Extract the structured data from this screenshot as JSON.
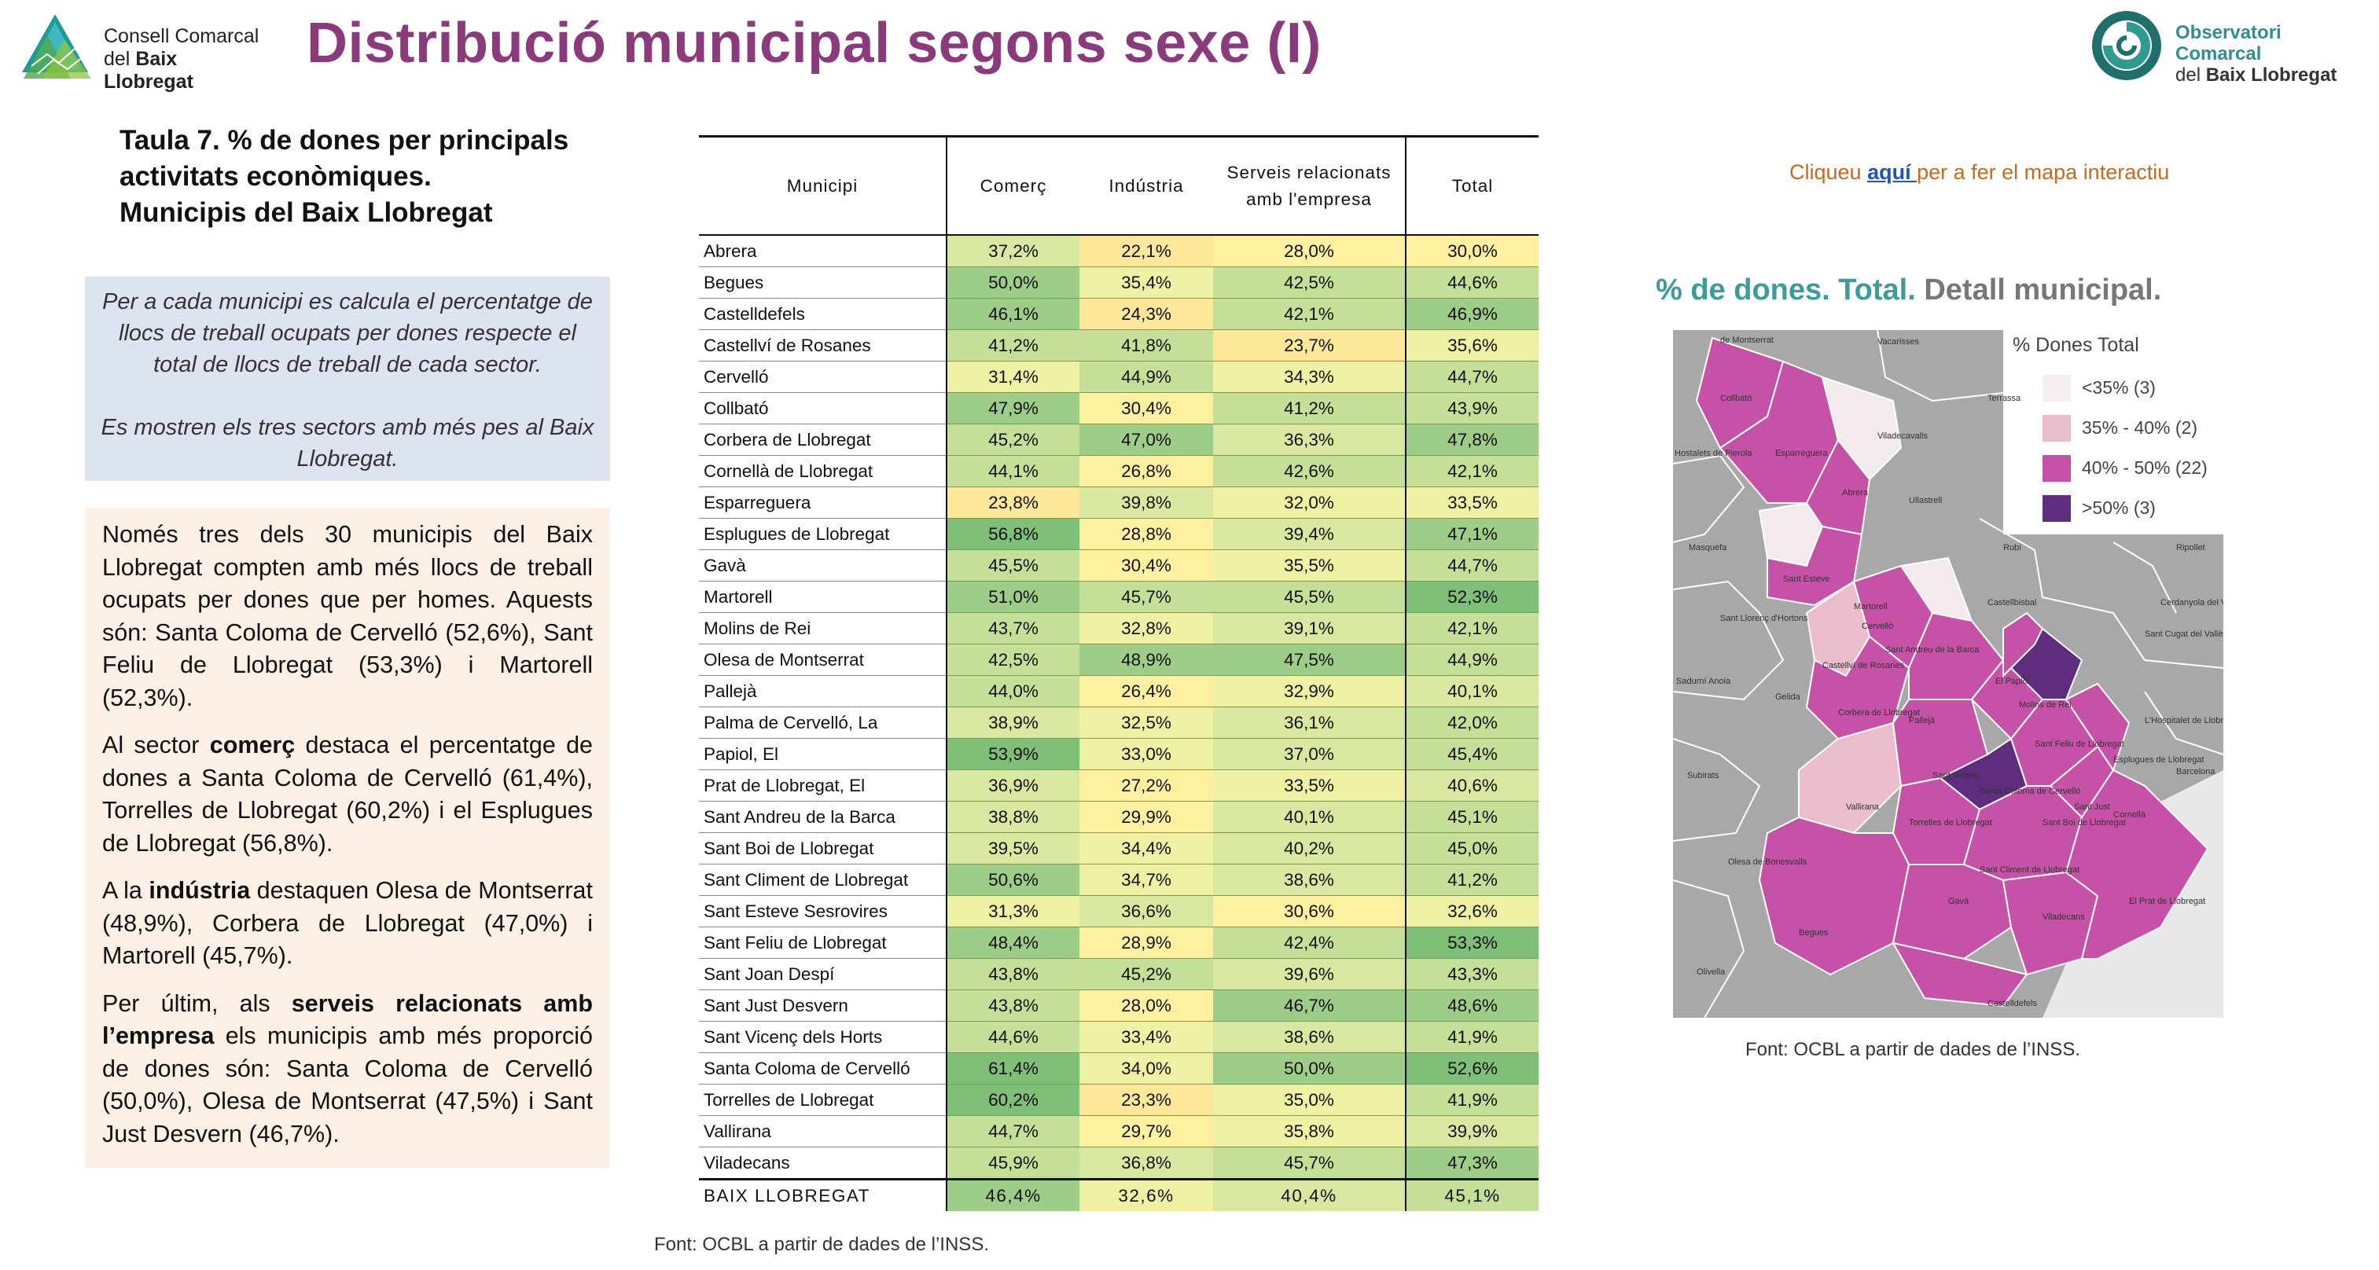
{
  "header": {
    "org_left_line1": "Consell Comarcal",
    "org_left_line2_prefix": "del ",
    "org_left_line2_bold": "Baix Llobregat",
    "title": "Distribució municipal segons sexe (I)",
    "org_right_line1": "Observatori Comarcal",
    "org_right_line2_prefix": "del ",
    "org_right_line2_bold": "Baix Llobregat"
  },
  "left": {
    "table_title_l1": "Taula 7. % de dones per principals",
    "table_title_l2": "activitats econòmiques.",
    "table_title_l3": "Municipis del Baix Llobregat",
    "note_p1": "Per a cada municipi es calcula el percentatge de llocs de treball ocupats per dones respecte el total de llocs de treball de cada sector.",
    "note_p2": "Es mostren els tres sectors amb més pes al Baix Llobregat.",
    "body_p1": "Només tres dels 30 municipis del Baix Llobregat compten amb més llocs de treball ocupats per dones que per homes. Aquests són: Santa Coloma de Cervelló (52,6%), Sant Feliu de Llobregat (53,3%) i Martorell (52,3%).",
    "body_p2_a": "Al sector ",
    "body_p2_b": "comerç",
    "body_p2_c": " destaca el percentatge de dones a Santa Coloma de Cervelló (61,4%), Torrelles de Llobregat (60,2%) i el Esplugues de Llobregat (56,8%).",
    "body_p3_a": "A la ",
    "body_p3_b": "indústria",
    "body_p3_c": " destaquen Olesa de Montserrat (48,9%), Corbera de Llobregat (47,0%) i Martorell (45,7%).",
    "body_p4_a": "Per últim, als ",
    "body_p4_b": "serveis relacionats amb l’empresa",
    "body_p4_c": " els municipis amb més proporció de dones són: Santa Coloma de Cervelló (50,0%), Olesa de Montserrat (47,5%) i Sant Just Desvern (46,7%)."
  },
  "table": {
    "headers": [
      "Municipi",
      "Comerç",
      "Indústria",
      "Serveis relacionats amb l'empresa",
      "Total"
    ],
    "rows": [
      {
        "m": "Abrera",
        "v": [
          "37,2%",
          "22,1%",
          "28,0%",
          "30,0%"
        ]
      },
      {
        "m": "Begues",
        "v": [
          "50,0%",
          "35,4%",
          "42,5%",
          "44,6%"
        ]
      },
      {
        "m": "Castelldefels",
        "v": [
          "46,1%",
          "24,3%",
          "42,1%",
          "46,9%"
        ]
      },
      {
        "m": "Castellví de Rosanes",
        "v": [
          "41,2%",
          "41,8%",
          "23,7%",
          "35,6%"
        ]
      },
      {
        "m": "Cervelló",
        "v": [
          "31,4%",
          "44,9%",
          "34,3%",
          "44,7%"
        ]
      },
      {
        "m": "Collbató",
        "v": [
          "47,9%",
          "30,4%",
          "41,2%",
          "43,9%"
        ]
      },
      {
        "m": "Corbera de Llobregat",
        "v": [
          "45,2%",
          "47,0%",
          "36,3%",
          "47,8%"
        ]
      },
      {
        "m": "Cornellà de Llobregat",
        "v": [
          "44,1%",
          "26,8%",
          "42,6%",
          "42,1%"
        ]
      },
      {
        "m": "Esparreguera",
        "v": [
          "23,8%",
          "39,8%",
          "32,0%",
          "33,5%"
        ]
      },
      {
        "m": "Esplugues de Llobregat",
        "v": [
          "56,8%",
          "28,8%",
          "39,4%",
          "47,1%"
        ]
      },
      {
        "m": "Gavà",
        "v": [
          "45,5%",
          "30,4%",
          "35,5%",
          "44,7%"
        ]
      },
      {
        "m": "Martorell",
        "v": [
          "51,0%",
          "45,7%",
          "45,5%",
          "52,3%"
        ]
      },
      {
        "m": "Molins de Rei",
        "v": [
          "43,7%",
          "32,8%",
          "39,1%",
          "42,1%"
        ]
      },
      {
        "m": "Olesa de Montserrat",
        "v": [
          "42,5%",
          "48,9%",
          "47,5%",
          "44,9%"
        ]
      },
      {
        "m": "Pallejà",
        "v": [
          "44,0%",
          "26,4%",
          "32,9%",
          "40,1%"
        ]
      },
      {
        "m": "Palma de Cervelló, La",
        "v": [
          "38,9%",
          "32,5%",
          "36,1%",
          "42,0%"
        ]
      },
      {
        "m": "Papiol, El",
        "v": [
          "53,9%",
          "33,0%",
          "37,0%",
          "45,4%"
        ]
      },
      {
        "m": "Prat de Llobregat, El",
        "v": [
          "36,9%",
          "27,2%",
          "33,5%",
          "40,6%"
        ]
      },
      {
        "m": "Sant Andreu de la Barca",
        "v": [
          "38,8%",
          "29,9%",
          "40,1%",
          "45,1%"
        ]
      },
      {
        "m": "Sant Boi de Llobregat",
        "v": [
          "39,5%",
          "34,4%",
          "40,2%",
          "45,0%"
        ]
      },
      {
        "m": "Sant Climent de Llobregat",
        "v": [
          "50,6%",
          "34,7%",
          "38,6%",
          "41,2%"
        ]
      },
      {
        "m": "Sant Esteve Sesrovires",
        "v": [
          "31,3%",
          "36,6%",
          "30,6%",
          "32,6%"
        ]
      },
      {
        "m": "Sant Feliu de Llobregat",
        "v": [
          "48,4%",
          "28,9%",
          "42,4%",
          "53,3%"
        ]
      },
      {
        "m": "Sant Joan Despí",
        "v": [
          "43,8%",
          "45,2%",
          "39,6%",
          "43,3%"
        ]
      },
      {
        "m": "Sant Just Desvern",
        "v": [
          "43,8%",
          "28,0%",
          "46,7%",
          "48,6%"
        ]
      },
      {
        "m": "Sant Vicenç dels Horts",
        "v": [
          "44,6%",
          "33,4%",
          "38,6%",
          "41,9%"
        ]
      },
      {
        "m": "Santa Coloma de Cervelló",
        "v": [
          "61,4%",
          "34,0%",
          "50,0%",
          "52,6%"
        ]
      },
      {
        "m": "Torrelles de Llobregat",
        "v": [
          "60,2%",
          "23,3%",
          "35,0%",
          "41,9%"
        ]
      },
      {
        "m": "Vallirana",
        "v": [
          "44,7%",
          "29,7%",
          "35,8%",
          "39,9%"
        ]
      },
      {
        "m": "Viladecans",
        "v": [
          "45,9%",
          "36,8%",
          "45,7%",
          "47,3%"
        ]
      }
    ],
    "total": {
      "m": "BAIX LLOBREGAT",
      "v": [
        "46,4%",
        "32,6%",
        "40,4%",
        "45,1%"
      ]
    },
    "source": "Font: OCBL a partir de dades de l’INSS."
  },
  "right": {
    "click_pre": "Cliqueu ",
    "click_link": "aquí ",
    "click_post": "per a fer el mapa interactiu",
    "map_title_a": "% de dones. Total.",
    "map_title_b": " Detall municipal.",
    "legend_title": "% Dones Total",
    "legend": [
      {
        "label": "<35% (3)",
        "color": "#f6eef1"
      },
      {
        "label": "35% - 40% (2)",
        "color": "#ebbccb"
      },
      {
        "label": "40% - 50% (22)",
        "color": "#c552a6"
      },
      {
        "label": ">50% (3)",
        "color": "#5f2d7e"
      }
    ],
    "map_labels": [
      "de Montserrat",
      "Vacarisses",
      "Terrassa",
      "Viladecavalls",
      "Hostalets de Pierola",
      "Masquefa",
      "Rubí",
      "Ripollet",
      "Ullastrell",
      "Castellbisbal",
      "Cerdanyola del Vallès",
      "Sant Llorenç d'Hortons",
      "Sant Cugat del Vallès",
      "Sadurní Anoia",
      "Gelida",
      "Subirats",
      "Barcelona",
      "Olesa de Bonesvalls",
      "Olivella",
      "Collbató",
      "Esparreguera",
      "Abrera",
      "Martorell",
      "Sant Esteve",
      "Castellví de Rosanes",
      "El Papiol",
      "Corbera de Llobregat",
      "Pallejà",
      "Molins de Rei",
      "Sant Feliu de Llobregat",
      "Esplugues de Llobregat",
      "Vallirana",
      "Torrelles de Llobregat",
      "Santa Coloma de Cervelló",
      "Sant Climent de Llobregat",
      "Sant Boi de Llobregat",
      "Begues",
      "Gavà",
      "Viladecans",
      "Castelldefels",
      "El Prat de Llobregat",
      "Cervelló",
      "Sant Just",
      "Sant Vicenç",
      "Sant Andreu de la Barca",
      "Cornellà",
      "L'Hospitalet de Llobregat"
    ],
    "source": "Font: OCBL a partir de dades de l’INSS."
  },
  "colors": {
    "title": "#8b3a7c",
    "teal": "#3b9c9a",
    "map_gray": "#a6a6a6",
    "cell_scale": [
      "#fbe89a",
      "#fdf0a0",
      "#eef0a3",
      "#d9e8a1",
      "#c4df97",
      "#9dcd86",
      "#7fbf78"
    ]
  }
}
